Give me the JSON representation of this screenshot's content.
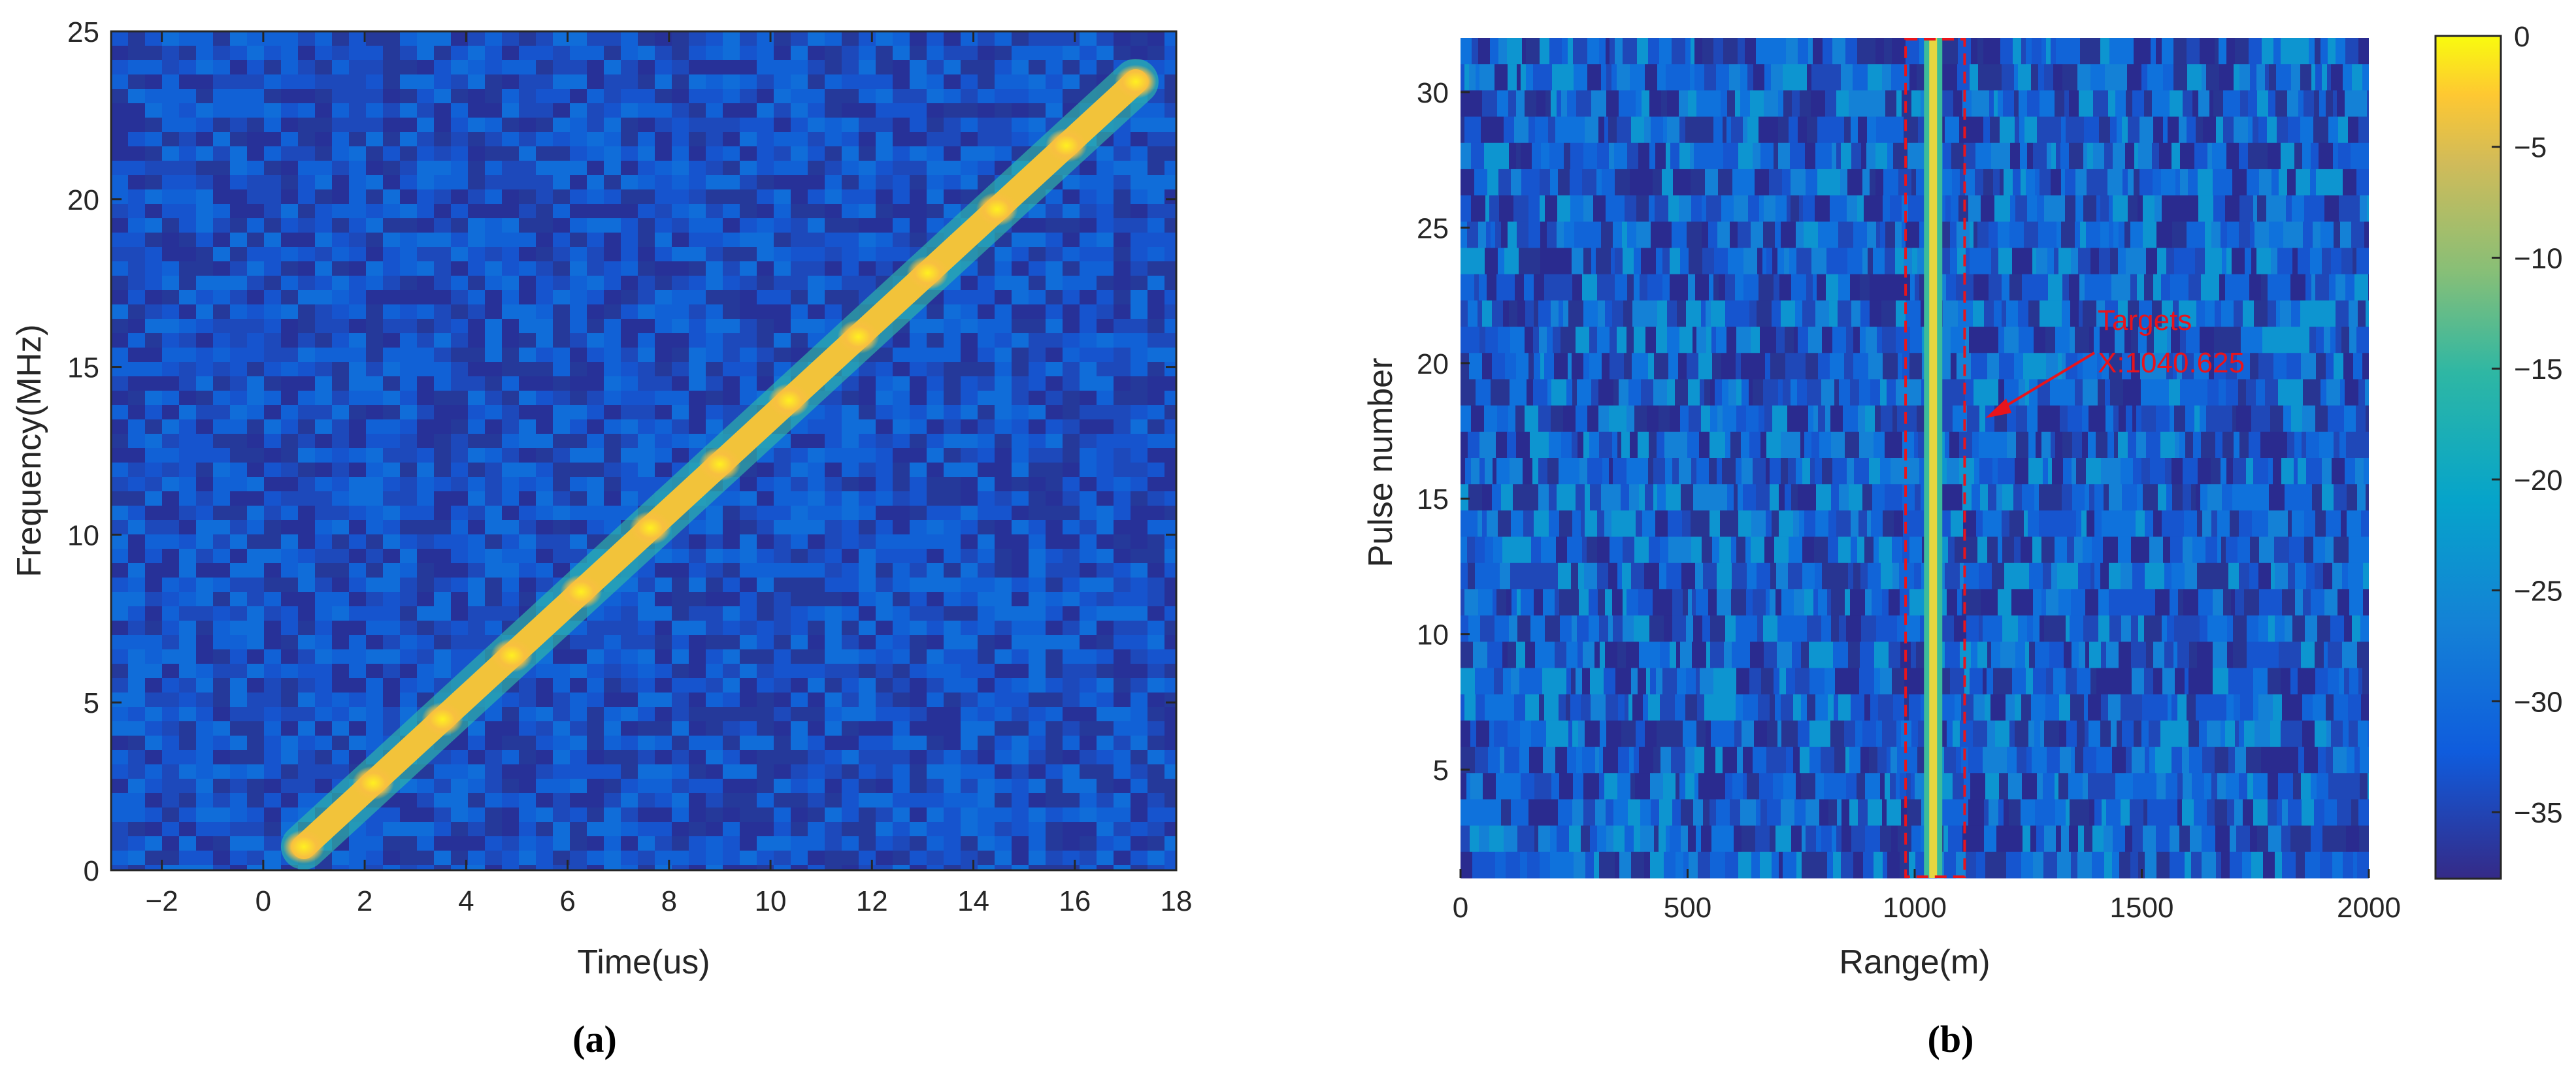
{
  "chart_data": [
    {
      "panel": "a",
      "type": "heatmap",
      "caption": "(a)",
      "xlabel": "Time(us)",
      "ylabel": "Frequency(MHz)",
      "xlim": [
        -3,
        18
      ],
      "ylim": [
        0,
        25
      ],
      "xticks": [
        -2,
        0,
        2,
        4,
        6,
        8,
        10,
        12,
        14,
        16,
        18
      ],
      "yticks": [
        0,
        5,
        10,
        15,
        20,
        25
      ],
      "colormap": "parula",
      "ridge": {
        "start": [
          0.8,
          0.7
        ],
        "end": [
          17.2,
          23.5
        ]
      }
    },
    {
      "panel": "b",
      "type": "heatmap",
      "caption": "(b)",
      "xlabel": "Range(m)",
      "ylabel": "Pulse number",
      "xlim": [
        0,
        2000
      ],
      "ylim": [
        1,
        32
      ],
      "xticks": [
        0,
        500,
        1000,
        1500,
        2000
      ],
      "yticks": [
        5,
        10,
        15,
        20,
        25,
        30
      ],
      "colormap": "parula",
      "colorbar": {
        "range": [
          -38,
          0
        ],
        "ticks": [
          0,
          -5,
          -10,
          -15,
          -20,
          -25,
          -30,
          -35
        ]
      },
      "target_line_x": 1040.625,
      "target_box_x": [
        980,
        1110
      ],
      "annotation": {
        "text": "Targets",
        "subtext": "X:1040.625",
        "arrow_to": [
          1150,
          18
        ]
      }
    }
  ]
}
